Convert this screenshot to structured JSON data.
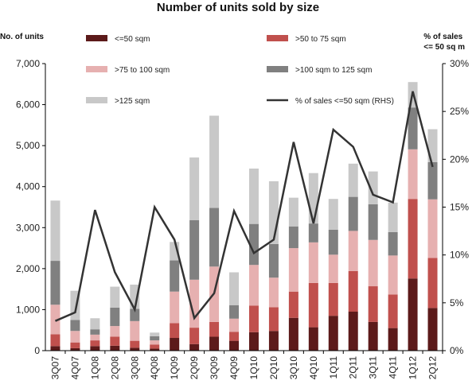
{
  "chart_data": {
    "type": "bar",
    "stacked": true,
    "title": "Number of units sold by size",
    "ylabel_left": "No. of units",
    "ylabel_right": "% of sales\n<= 50 sq m",
    "ylim_left": [
      0,
      7000
    ],
    "ylim_right": [
      0,
      30
    ],
    "left_ticks": [
      "0",
      "1,000",
      "2,000",
      "3,000",
      "4,000",
      "5,000",
      "6,000",
      "7,000"
    ],
    "right_ticks": [
      "0%",
      "5%",
      "10%",
      "15%",
      "20%",
      "25%",
      "30%"
    ],
    "grid": false,
    "legend_placement": "top",
    "categories": [
      "3Q07",
      "4Q07",
      "1Q08",
      "2Q08",
      "3Q08",
      "4Q08",
      "1Q09",
      "2Q09",
      "3Q09",
      "4Q09",
      "1Q10",
      "2Q10",
      "3Q10",
      "4Q10",
      "1Q11",
      "2Q11",
      "3Q11",
      "4Q11",
      "1Q12",
      "2Q12"
    ],
    "series": [
      {
        "name": "<=50 sqm",
        "color": "#5c1a1a",
        "values": [
          110,
          60,
          110,
          120,
          70,
          50,
          310,
          160,
          340,
          240,
          450,
          480,
          800,
          570,
          850,
          950,
          700,
          550,
          1760,
          1040
        ]
      },
      {
        "name": ">50 to 75 sqm",
        "color": "#c0504d",
        "values": [
          290,
          140,
          140,
          220,
          170,
          100,
          360,
          400,
          360,
          220,
          650,
          580,
          640,
          1080,
          800,
          990,
          870,
          820,
          1940,
          1220
        ]
      },
      {
        "name": ">75 to 100 sqm",
        "color": "#e6b0b0",
        "values": [
          720,
          280,
          140,
          260,
          480,
          100,
          770,
          1170,
          1350,
          320,
          990,
          720,
          1060,
          990,
          690,
          980,
          1130,
          950,
          1210,
          1430
        ]
      },
      {
        "name": ">100 sqm to 125 sqm",
        "color": "#808080",
        "values": [
          1070,
          270,
          130,
          450,
          300,
          100,
          760,
          1450,
          1430,
          330,
          1000,
          820,
          530,
          460,
          610,
          830,
          870,
          570,
          1020,
          910
        ]
      },
      {
        "name": ">125 sqm",
        "color": "#c8c8c8",
        "values": [
          1470,
          710,
          270,
          510,
          590,
          90,
          450,
          1530,
          2250,
          800,
          1350,
          1530,
          700,
          1230,
          750,
          810,
          800,
          720,
          620,
          800
        ]
      }
    ],
    "line_series": {
      "name": "% of sales <=50 sqm (RHS)",
      "color": "#333333",
      "axis": "right",
      "values": [
        3.1,
        4.0,
        14.7,
        8.2,
        4.3,
        15.0,
        11.6,
        3.4,
        6.0,
        14.6,
        10.2,
        11.6,
        21.8,
        13.3,
        23.1,
        21.3,
        16.3,
        15.5,
        27.1,
        19.2
      ]
    }
  }
}
